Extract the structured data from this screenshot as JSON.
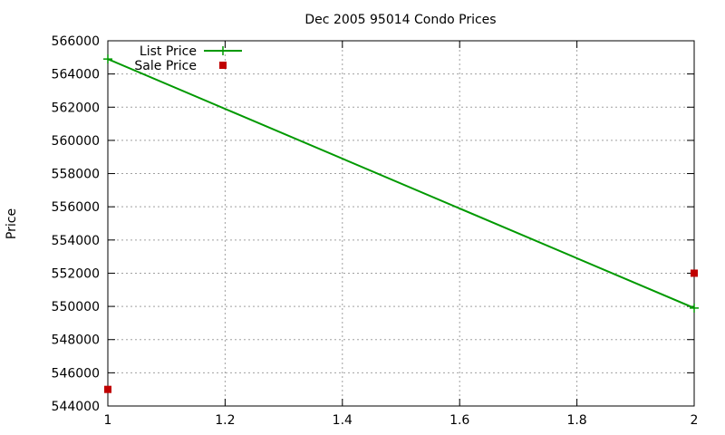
{
  "chart_data": {
    "type": "line",
    "title": "Dec 2005 95014 Condo Prices",
    "xlabel": "",
    "ylabel": "Price",
    "xlim": [
      1,
      2
    ],
    "ylim": [
      544000,
      566000
    ],
    "xticks": [
      1,
      1.2,
      1.4,
      1.6,
      1.8,
      2
    ],
    "xtick_labels": [
      "1",
      "1.2",
      "1.4",
      "1.6",
      "1.8",
      "2"
    ],
    "yticks": [
      544000,
      546000,
      548000,
      550000,
      552000,
      554000,
      556000,
      558000,
      560000,
      562000,
      564000,
      566000
    ],
    "ytick_labels": [
      "544000",
      "546000",
      "548000",
      "550000",
      "552000",
      "554000",
      "556000",
      "558000",
      "560000",
      "562000",
      "564000",
      "566000"
    ],
    "grid": true,
    "legend_position": "top-left",
    "series": [
      {
        "name": "List Price",
        "style": "linespoints",
        "marker": "plus",
        "color": "#009900",
        "x": [
          1,
          2
        ],
        "y": [
          564900,
          549900
        ]
      },
      {
        "name": "Sale Price",
        "style": "points",
        "marker": "square",
        "color": "#c00000",
        "x": [
          1,
          2
        ],
        "y": [
          545000,
          552000
        ]
      }
    ]
  }
}
